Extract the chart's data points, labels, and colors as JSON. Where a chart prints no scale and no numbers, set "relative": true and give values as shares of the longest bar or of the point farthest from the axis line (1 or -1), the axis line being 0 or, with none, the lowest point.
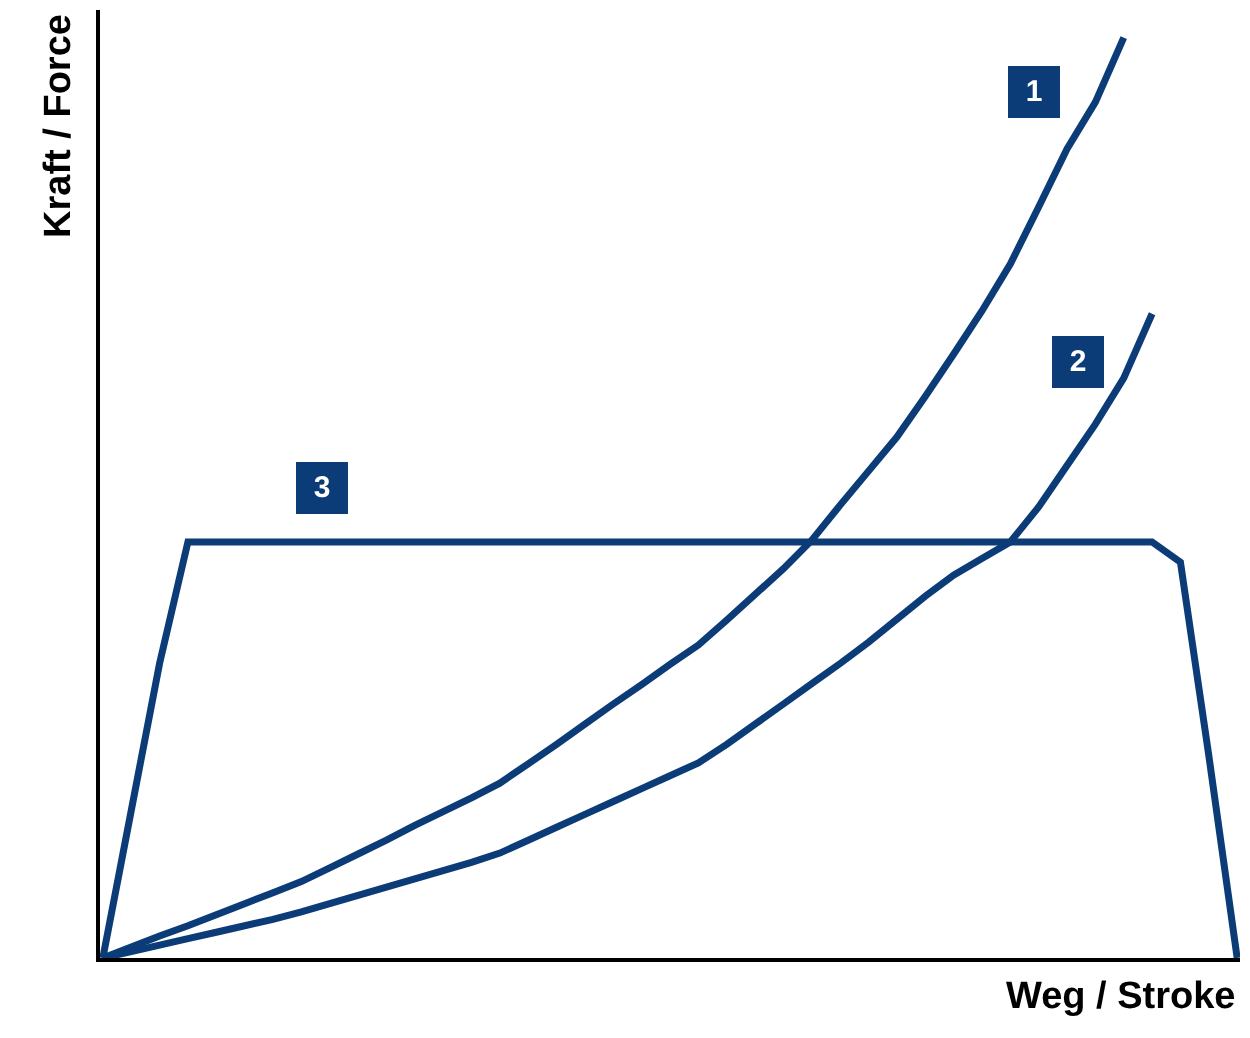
{
  "chart_data": {
    "type": "line",
    "relative": true,
    "xlabel": "Weg / Stroke",
    "ylabel": "Kraft / Force",
    "legend": false,
    "marker": "none",
    "line_style": "solid",
    "categories": [
      null,
      null,
      null,
      null,
      null,
      null,
      null,
      null,
      null,
      null,
      null,
      null,
      null,
      null,
      null,
      null,
      null,
      null,
      null,
      null,
      null,
      null,
      null,
      null,
      null,
      null,
      null,
      null,
      null,
      null,
      null,
      null,
      null,
      null,
      null,
      null,
      null,
      null,
      null,
      null,
      null
    ],
    "series": [
      {
        "name": "1",
        "color": "#0b3c78",
        "values": [
          0,
          0.012,
          0.024,
          0.035,
          0.047,
          0.059,
          0.071,
          0.083,
          0.098,
          0.113,
          0.128,
          0.144,
          0.159,
          0.174,
          0.19,
          0.211,
          0.232,
          0.254,
          0.276,
          0.297,
          0.319,
          0.34,
          0.367,
          0.395,
          0.423,
          0.454,
          0.492,
          0.529,
          0.566,
          0.61,
          0.656,
          0.703,
          0.754,
          0.816,
          0.879,
          0.93,
          1.0,
          null,
          null,
          null,
          null
        ]
      },
      {
        "name": "2",
        "color": "#0b3c78",
        "values": [
          0,
          0.007,
          0.014,
          0.021,
          0.028,
          0.035,
          0.042,
          0.05,
          0.059,
          0.068,
          0.077,
          0.086,
          0.095,
          0.104,
          0.114,
          0.128,
          0.142,
          0.156,
          0.17,
          0.184,
          0.198,
          0.212,
          0.232,
          0.254,
          0.276,
          0.298,
          0.32,
          0.343,
          0.368,
          0.393,
          0.416,
          0.434,
          0.452,
          0.49,
          0.535,
          0.58,
          0.63,
          0.7,
          null,
          null,
          null
        ]
      },
      {
        "name": "3",
        "color": "#0b3c78",
        "values": [
          0,
          0.16,
          0.32,
          0.452,
          0.452,
          0.452,
          0.452,
          0.452,
          0.452,
          0.452,
          0.452,
          0.452,
          0.452,
          0.452,
          0.452,
          0.452,
          0.452,
          0.452,
          0.452,
          0.452,
          0.452,
          0.452,
          0.452,
          0.452,
          0.452,
          0.452,
          0.452,
          0.452,
          0.452,
          0.452,
          0.452,
          0.452,
          0.452,
          0.452,
          0.452,
          0.452,
          0.452,
          0.452,
          0.43,
          0.22,
          0
        ]
      }
    ]
  }
}
